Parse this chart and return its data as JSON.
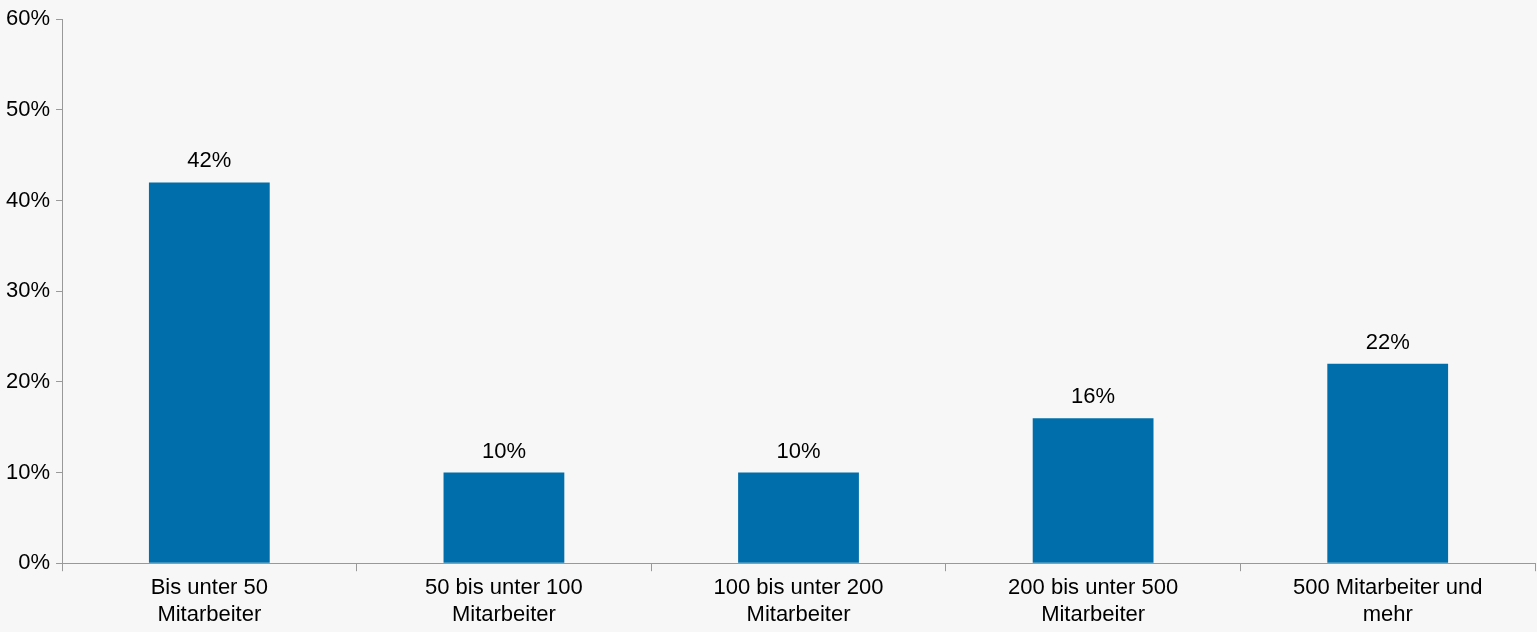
{
  "chart_data": {
    "type": "bar",
    "categories": [
      "Bis unter 50 Mitarbeiter",
      "50 bis unter 100 Mitarbeiter",
      "100 bis unter 200 Mitarbeiter",
      "200 bis unter 500 Mitarbeiter",
      "500 Mitarbeiter und mehr"
    ],
    "values": [
      42,
      10,
      10,
      16,
      22
    ],
    "value_labels": [
      "42%",
      "10%",
      "10%",
      "16%",
      "22%"
    ],
    "color": "#006eaa",
    "ylim": [
      0,
      60
    ],
    "yticks": [
      {
        "value": 0,
        "label": "0%"
      },
      {
        "value": 10,
        "label": "10%"
      },
      {
        "value": 20,
        "label": "20%"
      },
      {
        "value": 30,
        "label": "30%"
      },
      {
        "value": 40,
        "label": "40%"
      },
      {
        "value": 50,
        "label": "50%"
      },
      {
        "value": 60,
        "label": "60%"
      }
    ]
  }
}
